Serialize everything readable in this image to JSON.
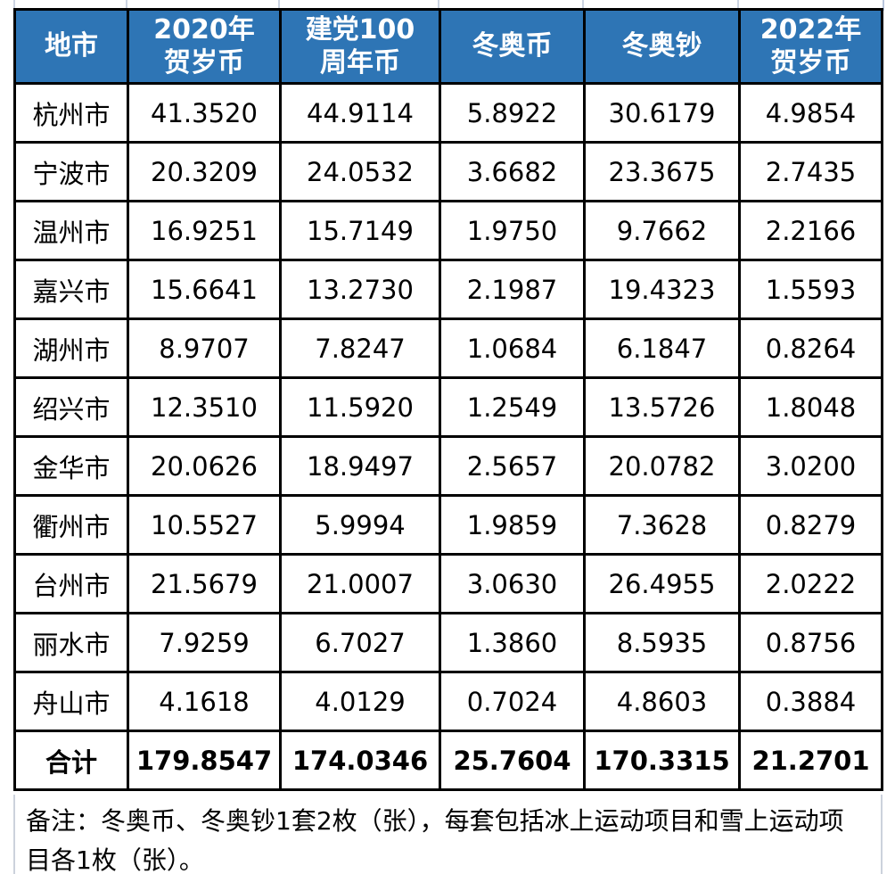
{
  "page": {
    "background_color": "#ffffff",
    "header_bg_color": "#2E75B5",
    "header_text_color": "#ffffff",
    "border_color": "#000000"
  },
  "table": {
    "columns": [
      "地市",
      "2020年\n贺岁币",
      "建党100\n周年币",
      "冬奥币",
      "冬奥钞",
      "2022年\n贺岁币"
    ],
    "rows": [
      {
        "city": "杭州市",
        "values": [
          "41.3520",
          "44.9114",
          "5.8922",
          "30.6179",
          "4.9854"
        ]
      },
      {
        "city": "宁波市",
        "values": [
          "20.3209",
          "24.0532",
          "3.6682",
          "23.3675",
          "2.7435"
        ]
      },
      {
        "city": "温州市",
        "values": [
          "16.9251",
          "15.7149",
          "1.9750",
          "9.7662",
          "2.2166"
        ]
      },
      {
        "city": "嘉兴市",
        "values": [
          "15.6641",
          "13.2730",
          "2.1987",
          "19.4323",
          "1.5593"
        ]
      },
      {
        "city": "湖州市",
        "values": [
          "8.9707",
          "7.8247",
          "1.0684",
          "6.1847",
          "0.8264"
        ]
      },
      {
        "city": "绍兴市",
        "values": [
          "12.3510",
          "11.5920",
          "1.2549",
          "13.5726",
          "1.8048"
        ]
      },
      {
        "city": "金华市",
        "values": [
          "20.0626",
          "18.9497",
          "2.5657",
          "20.0782",
          "3.0200"
        ]
      },
      {
        "city": "衢州市",
        "values": [
          "10.5527",
          "5.9994",
          "1.9859",
          "7.3628",
          "0.8279"
        ]
      },
      {
        "city": "台州市",
        "values": [
          "21.5679",
          "21.0007",
          "3.0630",
          "26.4955",
          "2.0222"
        ]
      },
      {
        "city": "丽水市",
        "values": [
          "7.9259",
          "6.7027",
          "1.3860",
          "8.5935",
          "0.8756"
        ]
      },
      {
        "city": "舟山市",
        "values": [
          "4.1618",
          "4.0129",
          "0.7024",
          "4.8603",
          "0.3884"
        ]
      }
    ],
    "total_row": {
      "label": "合计",
      "values": [
        "179.8547",
        "174.0346",
        "25.7604",
        "170.3315",
        "21.2701"
      ]
    }
  },
  "note": {
    "text": "备注：冬奥币、冬奥钞1套2枚（张），每套包括冰上运动项目和雪上运动项目各1枚（张）。"
  }
}
